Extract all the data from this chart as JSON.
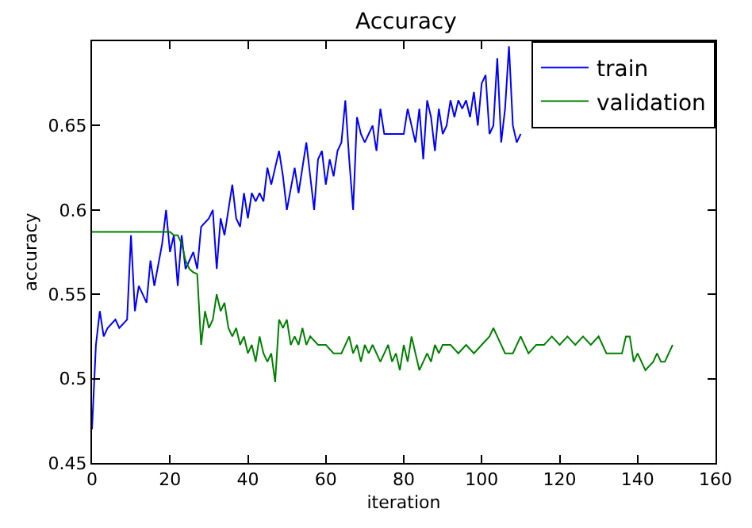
{
  "chart_data": {
    "type": "line",
    "title": "Accuracy",
    "xlabel": "iteration",
    "ylabel": "accuracy",
    "xlim": [
      0,
      160
    ],
    "ylim": [
      0.45,
      0.7
    ],
    "xticks": [
      0,
      20,
      40,
      60,
      80,
      100,
      120,
      140,
      160
    ],
    "yticks": [
      0.45,
      0.5,
      0.55,
      0.6,
      0.65
    ],
    "grid": false,
    "legend": "top right",
    "marker": "none",
    "line_style": "solid",
    "series": [
      {
        "name": "train",
        "color": "#0000ff",
        "x": [
          0,
          1,
          2,
          3,
          4,
          6,
          7,
          9,
          10,
          11,
          12,
          13,
          14,
          15,
          16,
          18,
          19,
          20,
          21,
          22,
          23,
          24,
          26,
          27,
          28,
          30,
          31,
          32,
          33,
          34,
          36,
          37,
          38,
          39,
          40,
          41,
          42,
          43,
          44,
          45,
          46,
          48,
          49,
          50,
          52,
          53,
          55,
          56,
          57,
          58,
          59,
          60,
          61,
          62,
          63,
          64,
          65,
          66,
          67,
          68,
          69,
          70,
          71,
          72,
          73,
          74,
          75,
          80,
          81,
          82,
          83,
          84,
          85,
          86,
          87,
          88,
          89,
          90,
          91,
          92,
          93,
          94,
          95,
          96,
          97,
          98,
          99,
          100,
          101,
          102,
          103,
          104,
          105,
          106,
          107,
          108,
          109,
          110
        ],
        "values": [
          0.47,
          0.52,
          0.54,
          0.525,
          0.53,
          0.535,
          0.53,
          0.535,
          0.585,
          0.54,
          0.555,
          0.55,
          0.545,
          0.57,
          0.555,
          0.58,
          0.6,
          0.575,
          0.585,
          0.555,
          0.585,
          0.565,
          0.575,
          0.565,
          0.59,
          0.595,
          0.6,
          0.565,
          0.595,
          0.585,
          0.615,
          0.595,
          0.59,
          0.61,
          0.595,
          0.61,
          0.605,
          0.61,
          0.605,
          0.625,
          0.615,
          0.635,
          0.62,
          0.6,
          0.625,
          0.61,
          0.64,
          0.62,
          0.6,
          0.63,
          0.635,
          0.615,
          0.63,
          0.62,
          0.635,
          0.64,
          0.665,
          0.63,
          0.6,
          0.655,
          0.645,
          0.64,
          0.645,
          0.65,
          0.635,
          0.66,
          0.645,
          0.645,
          0.66,
          0.65,
          0.64,
          0.66,
          0.63,
          0.665,
          0.655,
          0.635,
          0.66,
          0.645,
          0.65,
          0.665,
          0.655,
          0.665,
          0.66,
          0.665,
          0.655,
          0.67,
          0.65,
          0.675,
          0.68,
          0.645,
          0.65,
          0.69,
          0.64,
          0.66,
          0.697,
          0.65,
          0.64,
          0.645
        ]
      },
      {
        "name": "validation",
        "color": "#008000",
        "x": [
          0,
          20,
          21,
          22,
          23,
          24,
          25,
          26,
          27,
          28,
          29,
          30,
          31,
          32,
          33,
          34,
          35,
          36,
          37,
          38,
          39,
          40,
          41,
          42,
          43,
          44,
          45,
          46,
          47,
          48,
          49,
          50,
          51,
          52,
          53,
          54,
          55,
          56,
          58,
          60,
          62,
          64,
          66,
          67,
          68,
          69,
          70,
          71,
          72,
          74,
          75,
          76,
          77,
          78,
          79,
          80,
          81,
          82,
          83,
          84,
          85,
          86,
          87,
          88,
          89,
          90,
          92,
          94,
          96,
          98,
          100,
          102,
          103,
          104,
          106,
          108,
          110,
          112,
          114,
          116,
          118,
          120,
          122,
          124,
          126,
          128,
          130,
          132,
          134,
          136,
          137,
          138,
          139,
          140,
          142,
          144,
          145,
          146,
          147,
          149
        ],
        "values": [
          0.587,
          0.587,
          0.585,
          0.585,
          0.58,
          0.57,
          0.565,
          0.563,
          0.562,
          0.52,
          0.54,
          0.53,
          0.535,
          0.55,
          0.54,
          0.545,
          0.53,
          0.525,
          0.53,
          0.52,
          0.525,
          0.515,
          0.52,
          0.51,
          0.525,
          0.515,
          0.51,
          0.515,
          0.498,
          0.535,
          0.53,
          0.535,
          0.52,
          0.525,
          0.52,
          0.53,
          0.52,
          0.525,
          0.52,
          0.52,
          0.515,
          0.515,
          0.525,
          0.515,
          0.52,
          0.51,
          0.52,
          0.515,
          0.52,
          0.51,
          0.515,
          0.52,
          0.51,
          0.515,
          0.505,
          0.52,
          0.51,
          0.525,
          0.515,
          0.505,
          0.51,
          0.515,
          0.51,
          0.52,
          0.515,
          0.52,
          0.52,
          0.515,
          0.52,
          0.515,
          0.52,
          0.525,
          0.53,
          0.525,
          0.515,
          0.515,
          0.525,
          0.515,
          0.52,
          0.52,
          0.525,
          0.52,
          0.525,
          0.52,
          0.525,
          0.52,
          0.525,
          0.515,
          0.515,
          0.515,
          0.525,
          0.525,
          0.51,
          0.515,
          0.505,
          0.51,
          0.515,
          0.51,
          0.51,
          0.52
        ]
      }
    ]
  }
}
